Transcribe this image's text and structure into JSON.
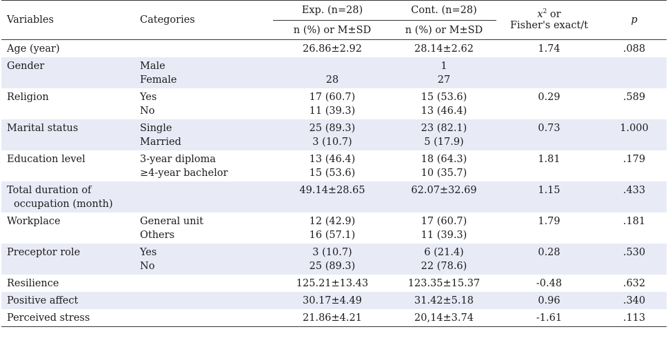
{
  "header": {
    "variables": "Variables",
    "categories": "Categories",
    "exp": "Exp. (n=28)",
    "cont": "Cont. (n=28)",
    "stat_line1_x": "x",
    "stat_line1_sup": "2",
    "stat_line1_rest": " or",
    "stat_line2": "Fisher's exact/t",
    "p": "p",
    "exp_sub": "n (%) or M±SD",
    "cont_sub": "n (%) or M±SD"
  },
  "rows": [
    {
      "variable": [
        "Age (year)"
      ],
      "categories": [],
      "exp": [
        "26.86±2.92"
      ],
      "cont": [
        "28.14±2.62"
      ],
      "stat": "1.74",
      "p": ".088",
      "shade": false
    },
    {
      "variable": [
        "Gender"
      ],
      "categories": [
        "Male",
        "Female"
      ],
      "exp": [
        "",
        "28"
      ],
      "cont": [
        "1",
        "27"
      ],
      "stat": "",
      "p": "",
      "shade": true
    },
    {
      "variable": [
        "Religion"
      ],
      "categories": [
        "Yes",
        "No"
      ],
      "exp": [
        "17 (60.7)",
        "11 (39.3)"
      ],
      "cont": [
        "15 (53.6)",
        "13 (46.4)"
      ],
      "stat": "0.29",
      "p": ".589",
      "shade": false
    },
    {
      "variable": [
        "Marital status"
      ],
      "categories": [
        "Single",
        "Married"
      ],
      "exp": [
        "25 (89.3)",
        "3 (10.7)"
      ],
      "cont": [
        "23 (82.1)",
        "5 (17.9)"
      ],
      "stat": "0.73",
      "p": "1.000",
      "shade": true
    },
    {
      "variable": [
        "Education level"
      ],
      "categories": [
        "3-year diploma",
        "≥4-year bachelor"
      ],
      "exp": [
        "13 (46.4)",
        "15 (53.6)"
      ],
      "cont": [
        "18 (64.3)",
        "10 (35.7)"
      ],
      "stat": "1.81",
      "p": ".179",
      "shade": false
    },
    {
      "variable": [
        "Total duration of",
        "occupation (month)"
      ],
      "categories": [],
      "exp": [
        "49.14±28.65"
      ],
      "cont": [
        "62.07±32.69"
      ],
      "stat": "1.15",
      "p": ".433",
      "shade": true
    },
    {
      "variable": [
        "Workplace"
      ],
      "categories": [
        "General unit",
        "Others"
      ],
      "exp": [
        "12 (42.9)",
        "16 (57.1)"
      ],
      "cont": [
        "17 (60.7)",
        "11 (39.3)"
      ],
      "stat": "1.79",
      "p": ".181",
      "shade": false
    },
    {
      "variable": [
        "Preceptor role"
      ],
      "categories": [
        "Yes",
        "No"
      ],
      "exp": [
        "3 (10.7)",
        "25 (89.3)"
      ],
      "cont": [
        "6 (21.4)",
        "22 (78.6)"
      ],
      "stat": "0.28",
      "p": ".530",
      "shade": true
    },
    {
      "variable": [
        "Resilience"
      ],
      "categories": [],
      "exp": [
        "125.21±13.43"
      ],
      "cont": [
        "123.35±15.37"
      ],
      "stat": "-0.48",
      "p": ".632",
      "shade": false
    },
    {
      "variable": [
        "Positive affect"
      ],
      "categories": [],
      "exp": [
        "30.17±4.49"
      ],
      "cont": [
        "31.42±5.18"
      ],
      "stat": "0.96",
      "p": ".340",
      "shade": true
    },
    {
      "variable": [
        "Perceived stress"
      ],
      "categories": [],
      "exp": [
        "21.86±4.21"
      ],
      "cont": [
        "20,14±3.74"
      ],
      "stat": "-1.61",
      "p": ".113",
      "shade": false
    }
  ]
}
